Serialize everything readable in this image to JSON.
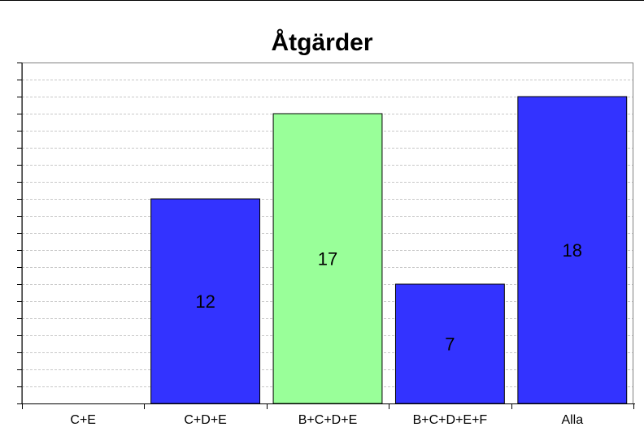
{
  "chart_data": {
    "type": "bar",
    "title": "Åtgärder",
    "categories": [
      "C+E",
      "C+D+E",
      "B+C+D+E",
      "B+C+D+E+F",
      "Alla"
    ],
    "values": [
      0,
      12,
      17,
      7,
      18
    ],
    "data_labels": [
      "",
      "12",
      "17",
      "7",
      "18"
    ],
    "colors": [
      "#3333ff",
      "#3333ff",
      "#99ff99",
      "#3333ff",
      "#3333ff"
    ],
    "ylim": [
      0,
      20
    ],
    "xlabel": "",
    "ylabel": "",
    "grid": true,
    "gridline_color": "#c8c8c8"
  }
}
